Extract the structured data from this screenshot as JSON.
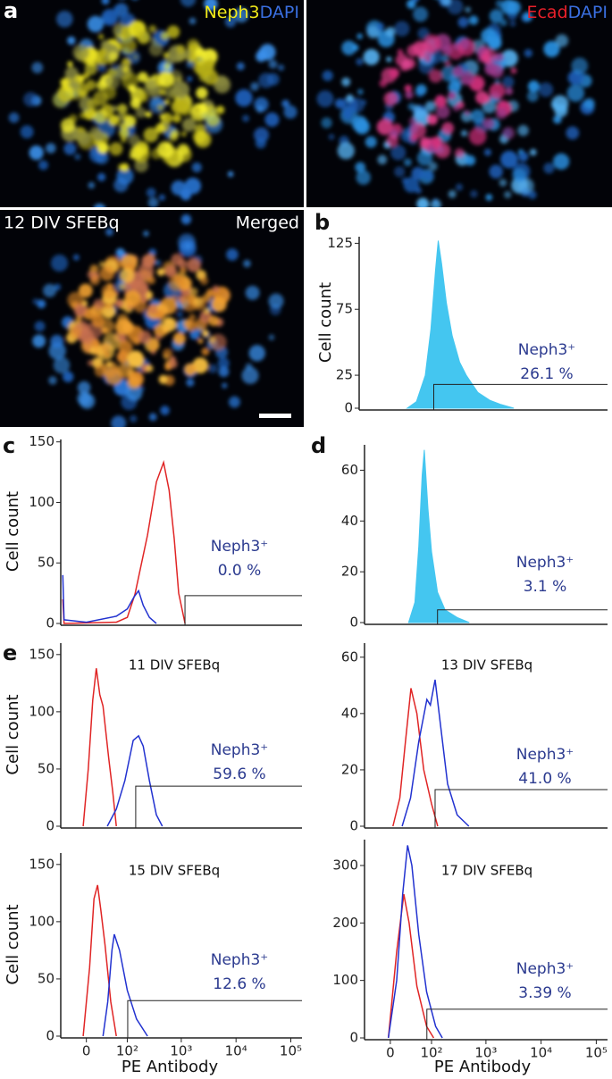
{
  "images": [
    {
      "letter": "a",
      "labels": [
        {
          "text": "Neph3",
          "color": "#f2ea1a"
        },
        {
          "text": "DAPI",
          "color": "#3a6fe0"
        }
      ]
    },
    {
      "labels": [
        {
          "text": "Ecad",
          "color": "#e8202a"
        },
        {
          "text": "DAPI",
          "color": "#3a6fe0"
        }
      ]
    },
    {
      "caption": "12 DIV SFEBq",
      "tag": "Merged"
    }
  ],
  "chart_data": [
    {
      "type": "area",
      "panel": "b",
      "ylabel": "Cell count",
      "ylim": [
        0,
        130
      ],
      "yticks": [
        0,
        25,
        75,
        125
      ],
      "xscale": "biexponential",
      "xlim": [
        -48,
        160000
      ],
      "series": [
        {
          "color": "#44c6f0",
          "x": [
            37,
            60,
            90,
            115,
            140,
            157,
            180,
            220,
            280,
            380,
            500,
            800,
            1300,
            2000,
            3500
          ],
          "values": [
            0,
            5,
            25,
            60,
            105,
            127,
            110,
            80,
            55,
            35,
            25,
            12,
            6,
            3,
            0
          ]
        }
      ],
      "gate": {
        "x": 130,
        "y": 18
      },
      "annotation": [
        "Neph3⁺",
        "26.1 %"
      ]
    },
    {
      "type": "line",
      "panel": "c",
      "ylabel": "Cell count",
      "ylim": [
        0,
        152
      ],
      "yticks": [
        0,
        50,
        100,
        150
      ],
      "xscale": "biexponential",
      "xlim": [
        -48,
        160000
      ],
      "series": [
        {
          "color": "#e02525",
          "x": [
            -43,
            -40,
            60,
            100,
            140,
            240,
            351,
            475,
            600,
            744,
            898,
            1169
          ],
          "values": [
            20,
            0,
            1,
            5,
            24,
            73,
            117,
            133,
            110,
            70,
            25,
            0
          ]
        },
        {
          "color": "#2232d0",
          "x": [
            -43,
            -40,
            0,
            60,
            100,
            135,
            164,
            200,
            260,
            350
          ],
          "values": [
            40,
            3,
            1,
            6,
            12,
            22,
            27,
            15,
            5,
            0
          ]
        }
      ],
      "gate": {
        "x": 1169,
        "y": 23
      },
      "annotation": [
        "Neph3⁺",
        "0.0 %"
      ]
    },
    {
      "type": "area",
      "panel": "d",
      "ylabel": "",
      "ylim": [
        0,
        70
      ],
      "yticks": [
        0,
        20,
        40,
        60
      ],
      "xscale": "biexponential",
      "xlim": [
        -48,
        160000
      ],
      "series": [
        {
          "color": "#44c6f0",
          "x": [
            31,
            45,
            55,
            65,
            72,
            85,
            100,
            130,
            180,
            300,
            500
          ],
          "values": [
            0,
            8,
            30,
            58,
            68,
            45,
            28,
            12,
            5,
            2,
            0
          ]
        }
      ],
      "gate": {
        "x": 130,
        "y": 5
      },
      "annotation": [
        "Neph3⁺",
        "3.1 %"
      ]
    },
    {
      "type": "line",
      "panel": "e",
      "title": "11 DIV SFEBq",
      "ylabel": "Cell count",
      "ylim": [
        0,
        160
      ],
      "yticks": [
        0,
        50,
        100,
        150
      ],
      "xscale": "biexponential",
      "xlim": [
        -48,
        160000
      ],
      "series": [
        {
          "color": "#e02525",
          "x": [
            -5,
            3,
            10,
            16,
            22,
            28,
            40,
            50,
            60
          ],
          "values": [
            0,
            50,
            110,
            138,
            115,
            105,
            60,
            30,
            0
          ]
        },
        {
          "color": "#2232d0",
          "x": [
            37,
            60,
            90,
            130,
            164,
            200,
            260,
            350,
            450
          ],
          "values": [
            0,
            15,
            40,
            75,
            79,
            70,
            40,
            10,
            0
          ]
        }
      ],
      "gate": {
        "x": 145,
        "y": 35
      },
      "annotation": [
        "Neph3⁺",
        "59.6 %"
      ]
    },
    {
      "type": "line",
      "title": "13 DIV SFEBq",
      "ylabel": "",
      "ylim": [
        0,
        65
      ],
      "yticks": [
        0,
        20,
        40,
        60
      ],
      "xscale": "biexponential",
      "xlim": [
        -48,
        160000
      ],
      "series": [
        {
          "color": "#e02525",
          "x": [
            4,
            15,
            25,
            36,
            50,
            70,
            100,
            131
          ],
          "values": [
            0,
            10,
            30,
            49,
            40,
            20,
            8,
            0
          ]
        },
        {
          "color": "#2232d0",
          "x": [
            19,
            35,
            55,
            81,
            95,
            117,
            150,
            200,
            300,
            490
          ],
          "values": [
            0,
            10,
            30,
            45,
            43,
            52,
            35,
            15,
            4,
            0
          ]
        }
      ],
      "gate": {
        "x": 117,
        "y": 13
      },
      "annotation": [
        "Neph3⁺",
        "41.0 %"
      ]
    },
    {
      "type": "line",
      "title": "15 DIV SFEBq",
      "ylabel": "Cell count",
      "xlabel": "PE Antibody",
      "ylim": [
        0,
        160
      ],
      "yticks": [
        0,
        50,
        100,
        150
      ],
      "xscale": "biexponential",
      "xlim": [
        -48,
        160000
      ],
      "xticks": [
        0,
        {
          "value": 100,
          "label": "10²"
        },
        {
          "value": 1000,
          "label": "10³"
        },
        {
          "value": 10000,
          "label": "10⁴"
        },
        {
          "value": 100000,
          "label": "10⁵"
        }
      ],
      "series": [
        {
          "color": "#e02525",
          "x": [
            -5,
            5,
            12,
            18,
            24,
            32,
            45,
            60
          ],
          "values": [
            0,
            60,
            120,
            132,
            110,
            80,
            30,
            0
          ]
        },
        {
          "color": "#2232d0",
          "x": [
            28,
            38,
            48,
            54,
            70,
            100,
            150,
            240
          ],
          "values": [
            0,
            30,
            75,
            89,
            75,
            40,
            15,
            0
          ]
        }
      ],
      "gate": {
        "x": 102,
        "y": 31
      },
      "annotation": [
        "Neph3⁺",
        "12.6 %"
      ]
    },
    {
      "type": "line",
      "title": "17 DIV SFEBq",
      "ylabel": "",
      "xlabel": "PE Antibody",
      "ylim": [
        0,
        345
      ],
      "yticks": [
        0,
        100,
        200,
        300
      ],
      "xscale": "biexponential",
      "xlim": [
        -48,
        160000
      ],
      "xticks": [
        0,
        {
          "value": 100,
          "label": "10²"
        },
        {
          "value": 1000,
          "label": "10³"
        },
        {
          "value": 10000,
          "label": "10⁴"
        },
        {
          "value": 100000,
          "label": "10⁵"
        }
      ],
      "series": [
        {
          "color": "#e02525",
          "x": [
            -3,
            10,
            22,
            32,
            50,
            80,
            110
          ],
          "values": [
            0,
            150,
            250,
            200,
            90,
            20,
            0
          ]
        },
        {
          "color": "#2232d0",
          "x": [
            -3,
            10,
            20,
            29,
            38,
            55,
            80,
            120,
            160
          ],
          "values": [
            0,
            100,
            250,
            335,
            300,
            180,
            80,
            20,
            0
          ]
        }
      ],
      "gate": {
        "x": 81,
        "y": 50
      },
      "annotation": [
        "Neph3⁺",
        "3.39 %"
      ]
    }
  ]
}
